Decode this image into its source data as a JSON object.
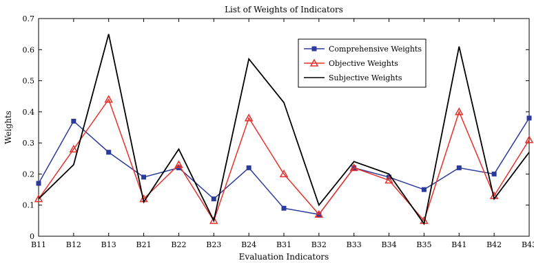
{
  "chart_data": {
    "type": "line",
    "title": "List of Weights of Indicators",
    "xlabel": "Evaluation Indicators",
    "ylabel": "Weights",
    "ylim": [
      0,
      0.7
    ],
    "yticks": [
      "0",
      "0.1",
      "0.2",
      "0.3",
      "0.4",
      "0.5",
      "0.6",
      "0.7"
    ],
    "categories": [
      "B11",
      "B12",
      "B13",
      "B21",
      "B22",
      "B23",
      "B24",
      "B31",
      "B32",
      "B33",
      "B34",
      "B35",
      "B41",
      "B42",
      "B43"
    ],
    "legend_position": "top-right",
    "grid": false,
    "series": [
      {
        "name": "Comprehensive Weights",
        "color": "#2b3a9b",
        "marker": "square",
        "values": [
          0.17,
          0.37,
          0.27,
          0.19,
          0.22,
          0.12,
          0.22,
          0.09,
          0.07,
          0.22,
          0.19,
          0.15,
          0.22,
          0.2,
          0.38
        ]
      },
      {
        "name": "Objective Weights",
        "color": "#e8312a",
        "marker": "triangle",
        "values": [
          0.12,
          0.28,
          0.44,
          0.12,
          0.23,
          0.05,
          0.38,
          0.2,
          0.07,
          0.22,
          0.18,
          0.05,
          0.4,
          0.13,
          0.31
        ]
      },
      {
        "name": "Subjective Weights",
        "color": "#000000",
        "marker": "none",
        "values": [
          0.12,
          0.23,
          0.65,
          0.11,
          0.28,
          0.05,
          0.57,
          0.43,
          0.1,
          0.24,
          0.2,
          0.04,
          0.61,
          0.12,
          0.27
        ]
      }
    ]
  }
}
